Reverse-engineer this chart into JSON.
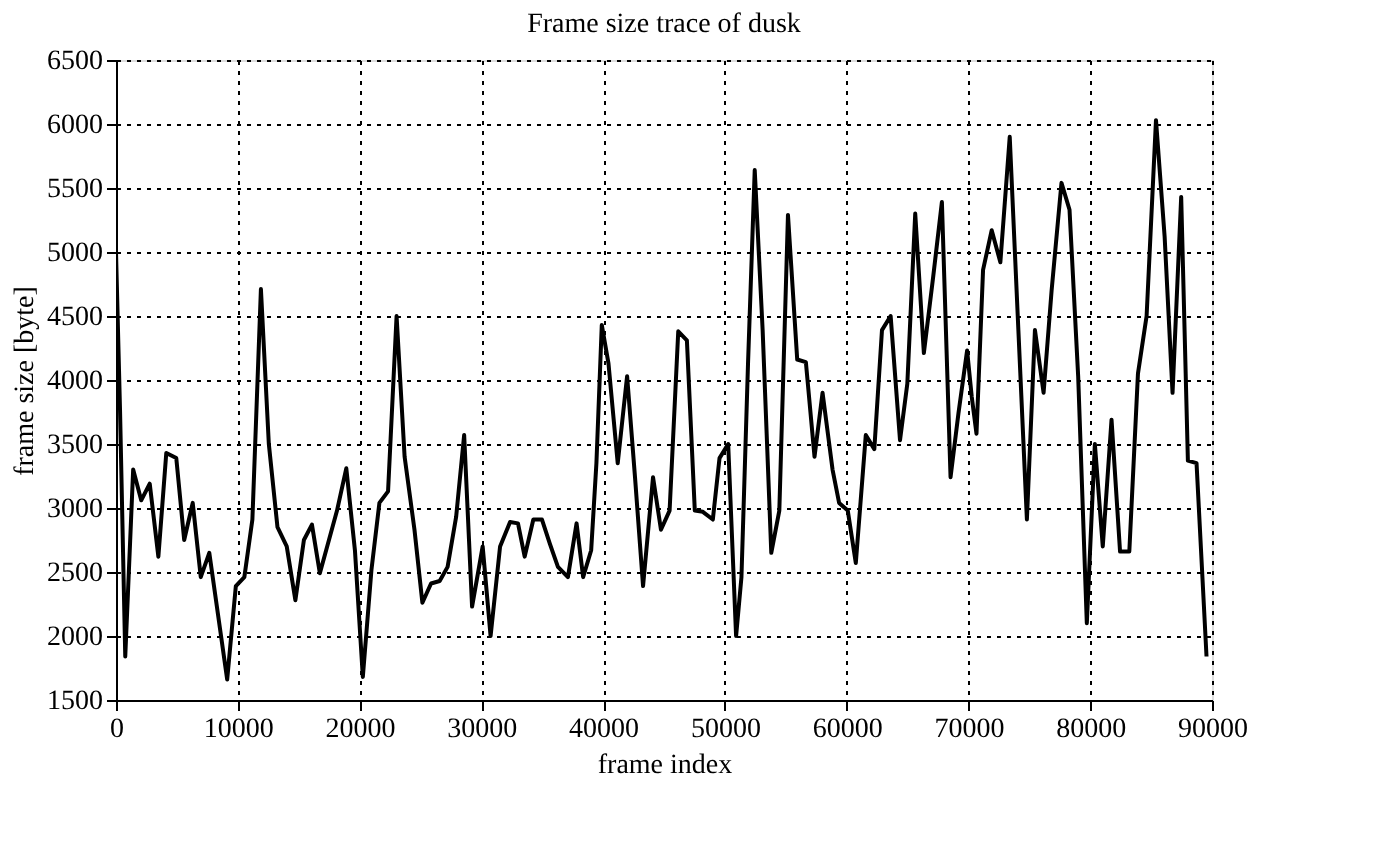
{
  "chart_data": {
    "type": "line",
    "title": "Frame size trace of dusk",
    "xlabel": "frame index",
    "ylabel": "frame size [byte]",
    "xlim": [
      0,
      90000
    ],
    "xticks": [
      0,
      10000,
      20000,
      30000,
      40000,
      50000,
      60000,
      70000,
      80000,
      90000
    ],
    "ylim": [
      1500,
      6500
    ],
    "yticks": [
      1500,
      2000,
      2500,
      3000,
      3500,
      4000,
      4500,
      5000,
      5500,
      6000,
      6500
    ],
    "grid": true,
    "marker": "none",
    "line_style": "solid",
    "x": [
      0,
      330,
      760,
      1410,
      2070,
      2770,
      3480,
      4130,
      4950,
      5600,
      6300,
      6960,
      7660,
      9130,
      9840,
      10540,
      11200,
      11900,
      12550,
      13260,
      14020,
      14730,
      15430,
      16090,
      16740,
      18150,
      18910,
      19620,
      20270,
      20980,
      21630,
      22340,
      23040,
      23700,
      24510,
      25160,
      25870,
      26580,
      27230,
      27930,
      28590,
      29240,
      30110,
      30760,
      31540,
      32360,
      33010,
      33560,
      34270,
      34980,
      35630,
      36290,
      37110,
      37820,
      38360,
      39020,
      39450,
      39890,
      40440,
      41200,
      41970,
      42620,
      43280,
      44100,
      44750,
      45460,
      46170,
      46880,
      47530,
      48190,
      49010,
      49560,
      50270,
      50920,
      51360,
      51900,
      52450,
      53100,
      53810,
      54470,
      55180,
      55940,
      56650,
      57360,
      58020,
      58840,
      59380,
      60090,
      60750,
      61570,
      62270,
      62900,
      63610,
      64380,
      64980,
      65630,
      66340,
      67110,
      67820,
      68530,
      69180,
      69890,
      70270,
      70660,
      71200,
      71910,
      72620,
      73390,
      74100,
      74800,
      75460,
      76170,
      76830,
      77640,
      78300,
      79010,
      79720,
      80380,
      81030,
      81750,
      82450,
      83210,
      83920,
      84630,
      85400,
      86110,
      86760,
      87470,
      88020,
      88730,
      89550
    ],
    "series": [
      {
        "color": "#000000",
        "values": [
          5000,
          3770,
          1840,
          3300,
          3060,
          3190,
          2620,
          3430,
          3390,
          2750,
          3040,
          2460,
          2650,
          1660,
          2390,
          2460,
          2910,
          4710,
          3500,
          2850,
          2700,
          2280,
          2750,
          2870,
          2490,
          2980,
          3310,
          2670,
          1680,
          2520,
          3040,
          3130,
          4500,
          3400,
          2830,
          2260,
          2410,
          2430,
          2540,
          2930,
          3570,
          2230,
          2700,
          2000,
          2700,
          2890,
          2880,
          2620,
          2910,
          2910,
          2720,
          2540,
          2460,
          2880,
          2460,
          2670,
          3350,
          4430,
          4130,
          3350,
          4030,
          3240,
          2390,
          3240,
          2830,
          2980,
          4380,
          4310,
          2980,
          2970,
          2910,
          3390,
          3500,
          2000,
          2460,
          4130,
          5640,
          4390,
          2650,
          2980,
          5290,
          4160,
          4140,
          3400,
          3900,
          3300,
          3040,
          2980,
          2570,
          3570,
          3460,
          4390,
          4500,
          3530,
          3970,
          5300,
          4210,
          4810,
          5390,
          3240,
          3740,
          4230,
          3870,
          3580,
          4860,
          5170,
          4920,
          5900,
          4390,
          2910,
          4390,
          3900,
          4700,
          5540,
          5330,
          4030,
          2100,
          3500,
          2700,
          3690,
          2660,
          2660,
          4050,
          4500,
          6030,
          5120,
          3900,
          5430,
          3370,
          3350,
          1840
        ]
      }
    ]
  }
}
